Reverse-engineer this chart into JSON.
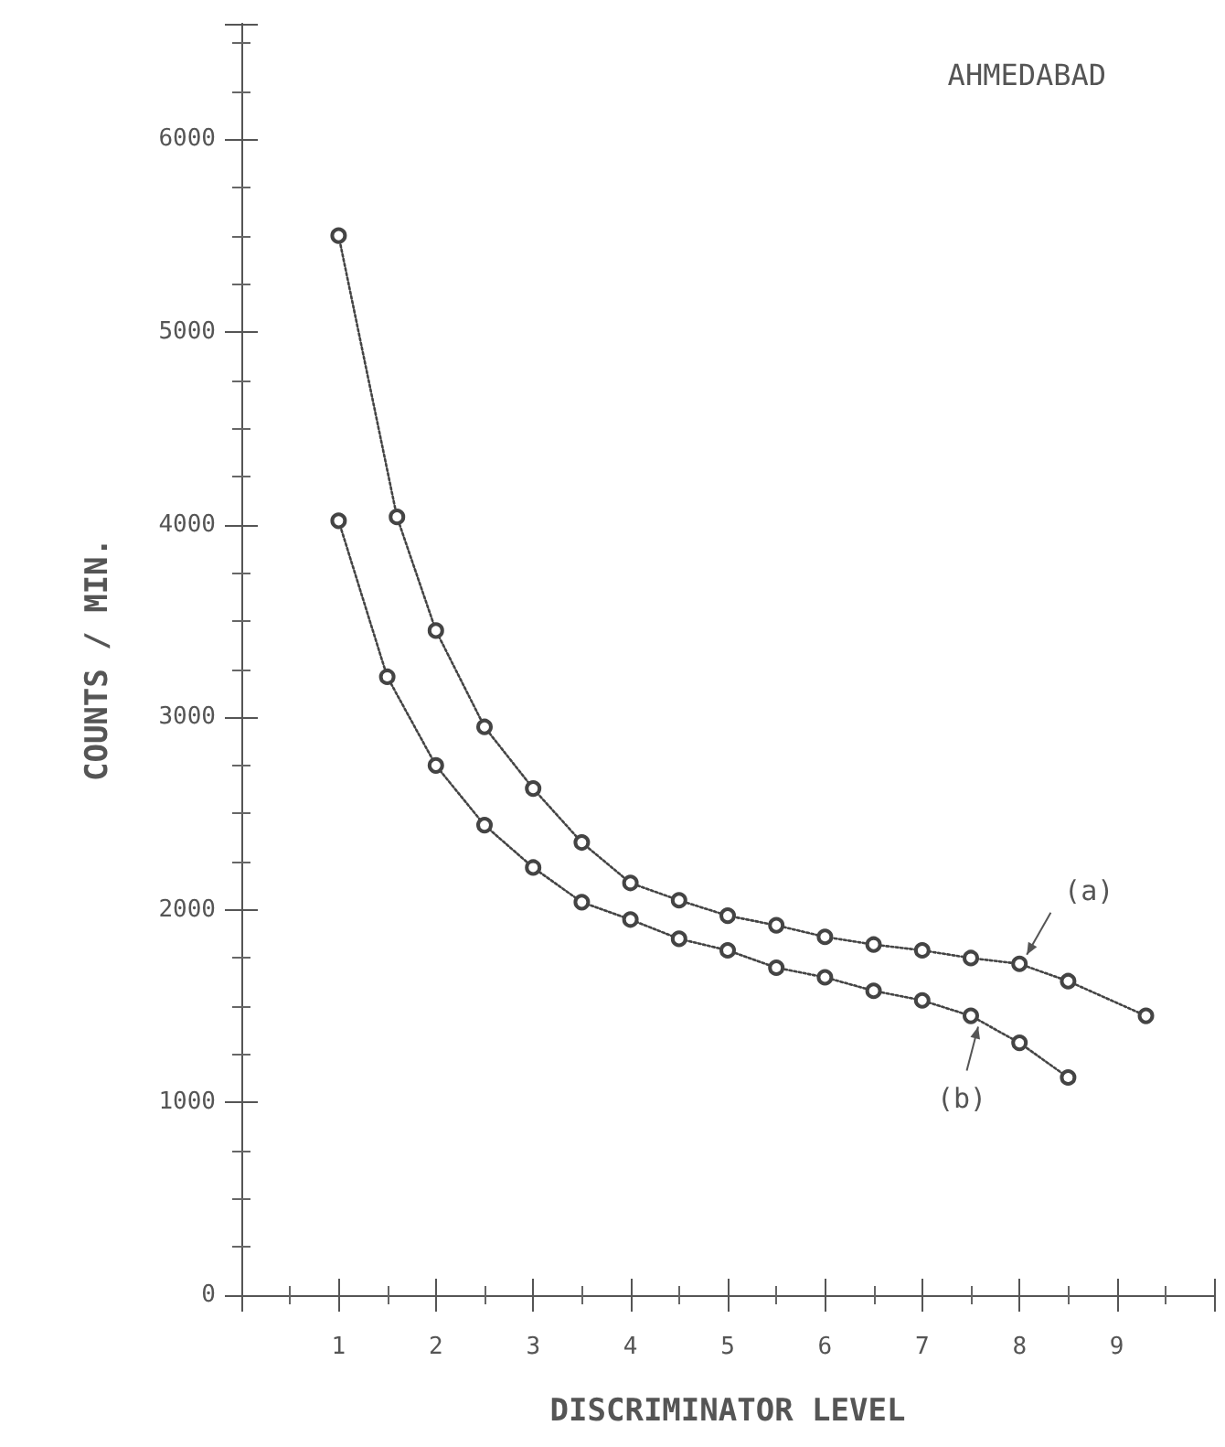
{
  "chart_data": {
    "type": "line",
    "title": "AHMEDABAD",
    "xlabel": "DISCRIMINATOR LEVEL",
    "ylabel": "COUNTS / MIN.",
    "series": [
      {
        "name": "(a)",
        "color": "#444444",
        "x": [
          1,
          1.6,
          2,
          2.5,
          3,
          3.5,
          4,
          4.5,
          5,
          5.5,
          6,
          6.5,
          7,
          7.5,
          8,
          8.5,
          9.3
        ],
        "values": [
          5500,
          4040,
          3450,
          2950,
          2630,
          2350,
          2140,
          2050,
          1970,
          1920,
          1860,
          1820,
          1790,
          1750,
          1720,
          1630,
          1450
        ]
      },
      {
        "name": "(b)",
        "color": "#444444",
        "x": [
          1,
          1.5,
          2,
          2.5,
          3,
          3.5,
          4,
          4.5,
          5,
          5.5,
          6,
          6.5,
          7,
          7.5,
          8,
          8.5
        ],
        "values": [
          4020,
          3210,
          2750,
          2440,
          2220,
          2040,
          1950,
          1850,
          1790,
          1700,
          1650,
          1580,
          1530,
          1450,
          1310,
          1130
        ]
      }
    ],
    "xlim": [
      0,
      10
    ],
    "xticks": [
      {
        "value": 0,
        "label": null
      },
      1,
      2,
      3,
      4,
      5,
      6,
      7,
      8,
      9,
      {
        "value": 10,
        "label": null
      }
    ],
    "ylim": [
      0,
      6600
    ],
    "yticks": [
      0,
      1000,
      2000,
      3000,
      4000,
      5000,
      6000
    ],
    "grid": false,
    "legend": false,
    "marker": "circle",
    "line_style": "dotted"
  }
}
